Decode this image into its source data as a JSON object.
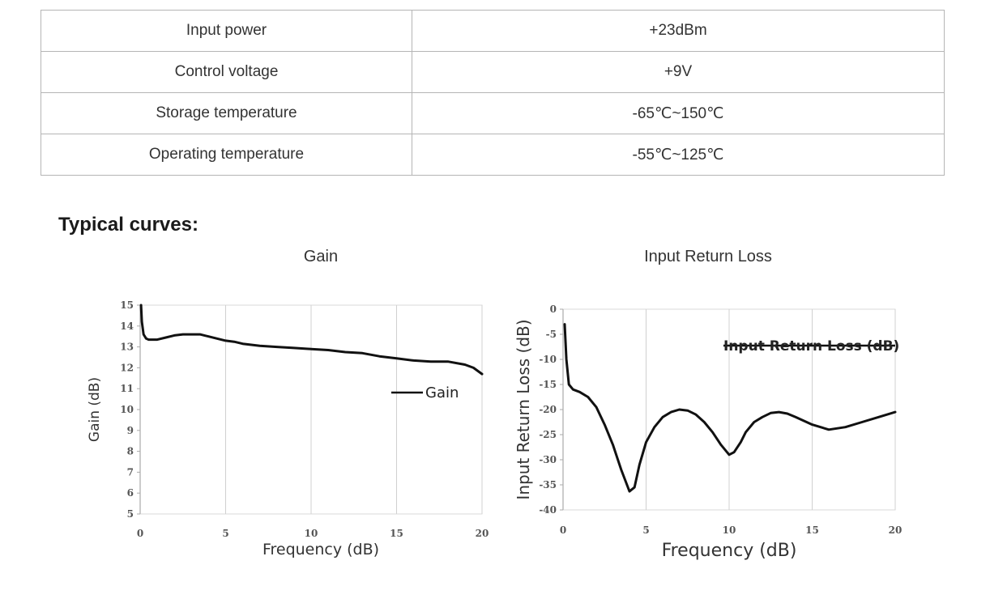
{
  "spec_table": [
    {
      "param": "Input power",
      "value": "+23dBm"
    },
    {
      "param": "Control voltage",
      "value": "+9V"
    },
    {
      "param": "Storage temperature",
      "value": "-65℃~150℃"
    },
    {
      "param": "Operating temperature",
      "value": "-55℃~125℃"
    }
  ],
  "section_title": "Typical curves:",
  "chart_data": [
    {
      "type": "line",
      "title": "Gain",
      "xlabel": "Frequency (dB)",
      "ylabel": "Gain (dB)",
      "xlim": [
        0,
        20
      ],
      "ylim": [
        5,
        15
      ],
      "x_ticks": [
        "0",
        "5",
        "10",
        "15",
        "20"
      ],
      "y_ticks": [
        "5",
        "6",
        "7",
        "8",
        "9",
        "10",
        "11",
        "12",
        "13",
        "14",
        "15"
      ],
      "grid": "vertical",
      "legend": {
        "position": "right",
        "entries": [
          "Gain"
        ]
      },
      "series": [
        {
          "name": "Gain",
          "color": "#111111",
          "x": [
            0.05,
            0.1,
            0.2,
            0.35,
            0.5,
            1.0,
            1.5,
            2.0,
            2.5,
            3.0,
            3.5,
            4.0,
            4.5,
            5.0,
            5.5,
            6.0,
            7.0,
            8.0,
            9.0,
            10.0,
            11.0,
            12.0,
            13.0,
            14.0,
            15.0,
            16.0,
            17.0,
            18.0,
            19.0,
            19.5,
            20.0
          ],
          "y": [
            15.0,
            14.2,
            13.6,
            13.4,
            13.35,
            13.35,
            13.45,
            13.55,
            13.6,
            13.6,
            13.6,
            13.5,
            13.4,
            13.3,
            13.25,
            13.15,
            13.05,
            13.0,
            12.95,
            12.9,
            12.85,
            12.75,
            12.7,
            12.55,
            12.45,
            12.35,
            12.3,
            12.3,
            12.15,
            12.0,
            11.7
          ]
        }
      ]
    },
    {
      "type": "line",
      "title": "Input Return Loss",
      "xlabel": "Frequency (dB)",
      "ylabel": "Input Return Loss (dB)",
      "xlim": [
        0,
        20
      ],
      "ylim": [
        -40,
        0
      ],
      "x_ticks": [
        "0",
        "5",
        "10",
        "15",
        "20"
      ],
      "y_ticks": [
        "0",
        "-5",
        "-10",
        "-15",
        "-20",
        "-25",
        "-30",
        "-35",
        "-40"
      ],
      "grid": "vertical",
      "legend": {
        "position": "top-right",
        "entries": [
          "Input Return Loss (dB)"
        ]
      },
      "series": [
        {
          "name": "Input Return Loss (dB)",
          "color": "#111111",
          "x": [
            0.1,
            0.2,
            0.35,
            0.6,
            1.0,
            1.5,
            2.0,
            2.5,
            3.0,
            3.5,
            4.0,
            4.3,
            4.6,
            5.0,
            5.5,
            6.0,
            6.5,
            7.0,
            7.5,
            8.0,
            8.5,
            9.0,
            9.5,
            10.0,
            10.3,
            10.7,
            11.0,
            11.5,
            12.0,
            12.5,
            13.0,
            13.5,
            14.0,
            15.0,
            16.0,
            17.0,
            18.0,
            19.0,
            20.0
          ],
          "y": [
            -3.0,
            -10.0,
            -15.0,
            -16.0,
            -16.5,
            -17.5,
            -19.5,
            -23.0,
            -27.0,
            -32.0,
            -36.3,
            -35.5,
            -31.0,
            -26.5,
            -23.5,
            -21.5,
            -20.5,
            -20.0,
            -20.2,
            -21.0,
            -22.5,
            -24.5,
            -27.0,
            -29.0,
            -28.5,
            -26.5,
            -24.5,
            -22.5,
            -21.5,
            -20.7,
            -20.5,
            -20.8,
            -21.5,
            -23.0,
            -24.0,
            -23.5,
            -22.5,
            -21.5,
            -20.5
          ]
        }
      ]
    }
  ]
}
